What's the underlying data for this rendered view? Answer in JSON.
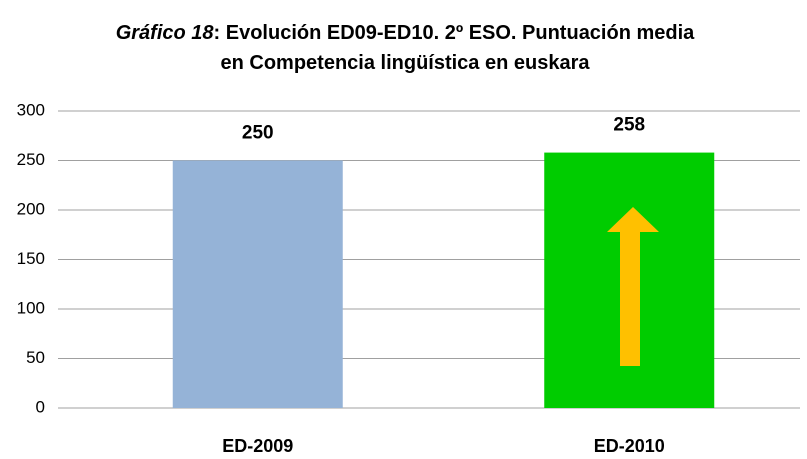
{
  "chart_data": {
    "type": "bar",
    "title_italic": "Gráfico 18",
    "title": ": Evolución ED09-ED10.  2º ESO. Puntuación media en Competencia lingüística en euskara",
    "categories": [
      "ED-2009",
      "ED-2010"
    ],
    "values": [
      250,
      258
    ],
    "colors": [
      "#95b3d7",
      "#00cc00"
    ],
    "ylim": [
      0,
      300
    ],
    "yticks": [
      0,
      50,
      100,
      150,
      200,
      250,
      300
    ],
    "grid": true
  }
}
